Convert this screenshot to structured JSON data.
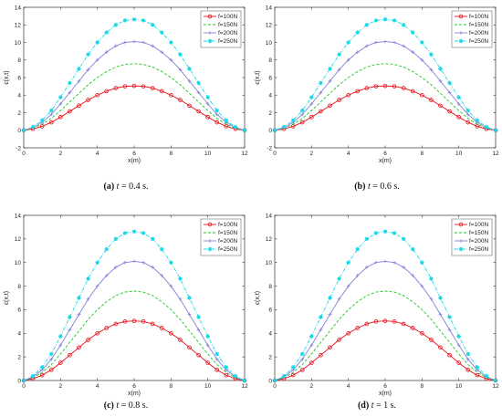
{
  "chart_data": [
    {
      "type": "line",
      "caption": {
        "label": "(a)",
        "math": "t",
        "rest": "= 0.4 s."
      },
      "xlabel": "x(m)",
      "ylabel": "ϵ(x,t)",
      "xlim": [
        0,
        12
      ],
      "ylim": [
        -2,
        14
      ],
      "xticks": [
        "0",
        "2",
        "4",
        "6",
        "8",
        "10",
        "12"
      ],
      "yticks": [
        "-2",
        "0",
        "2",
        "4",
        "6",
        "8",
        "10",
        "12",
        "14"
      ],
      "legend_position": "top-right",
      "x": [
        0,
        0.5,
        1,
        1.5,
        2,
        2.5,
        3,
        3.5,
        4,
        4.5,
        5,
        5.5,
        6,
        6.5,
        7,
        7.5,
        8,
        8.5,
        9,
        9.5,
        10,
        10.5,
        11,
        11.5,
        12
      ],
      "series": [
        {
          "name": "f=100N",
          "color": "#e8111b",
          "style": "solid-circle",
          "values": [
            0,
            0.15,
            0.45,
            0.9,
            1.5,
            2.15,
            2.8,
            3.45,
            4.0,
            4.45,
            4.8,
            5.0,
            5.05,
            5.0,
            4.8,
            4.45,
            4.0,
            3.45,
            2.8,
            2.15,
            1.5,
            0.9,
            0.45,
            0.15,
            0
          ]
        },
        {
          "name": "f=150N",
          "color": "#1ec81e",
          "style": "dashed",
          "values": [
            0,
            0.23,
            0.68,
            1.35,
            2.25,
            3.23,
            4.2,
            5.18,
            6.0,
            6.68,
            7.2,
            7.5,
            7.58,
            7.5,
            7.2,
            6.68,
            6.0,
            5.18,
            4.2,
            3.23,
            2.25,
            1.35,
            0.68,
            0.23,
            0
          ]
        },
        {
          "name": "f=200N",
          "color": "#8580d8",
          "style": "solid-plus",
          "values": [
            0,
            0.3,
            0.9,
            1.8,
            3.0,
            4.3,
            5.6,
            6.9,
            8.0,
            8.9,
            9.6,
            10.0,
            10.1,
            10.0,
            9.6,
            8.9,
            8.0,
            6.9,
            5.6,
            4.3,
            3.0,
            1.8,
            0.9,
            0.3,
            0
          ]
        },
        {
          "name": "f=250N",
          "color": "#19d8e8",
          "style": "dashdot-star",
          "values": [
            0,
            0.38,
            1.13,
            2.25,
            3.75,
            5.38,
            7.0,
            8.63,
            10.0,
            11.13,
            12.0,
            12.5,
            12.63,
            12.5,
            12.0,
            11.13,
            10.0,
            8.63,
            7.0,
            5.38,
            3.75,
            2.25,
            1.13,
            0.38,
            0
          ]
        }
      ]
    },
    {
      "type": "line",
      "caption": {
        "label": "(b)",
        "math": "t",
        "rest": "= 0.6 s."
      },
      "xlabel": "x(m)",
      "ylabel": "ϵ(x,t)",
      "xlim": [
        0,
        12
      ],
      "ylim": [
        -2,
        14
      ],
      "xticks": [
        "0",
        "2",
        "4",
        "6",
        "8",
        "10",
        "12"
      ],
      "yticks": [
        "-2",
        "0",
        "2",
        "4",
        "6",
        "8",
        "10",
        "12",
        "14"
      ],
      "legend_position": "top-right",
      "x": [
        0,
        0.5,
        1,
        1.5,
        2,
        2.5,
        3,
        3.5,
        4,
        4.5,
        5,
        5.5,
        6,
        6.5,
        7,
        7.5,
        8,
        8.5,
        9,
        9.5,
        10,
        10.5,
        11,
        11.5,
        12
      ],
      "series": [
        {
          "name": "f=100N",
          "color": "#e8111b",
          "style": "solid-circle",
          "values": [
            0,
            0.15,
            0.45,
            0.9,
            1.5,
            2.15,
            2.8,
            3.45,
            4.0,
            4.45,
            4.8,
            5.0,
            5.05,
            5.0,
            4.8,
            4.45,
            4.0,
            3.45,
            2.8,
            2.15,
            1.5,
            0.9,
            0.45,
            0.15,
            0
          ]
        },
        {
          "name": "f=150N",
          "color": "#1ec81e",
          "style": "dashed",
          "values": [
            0,
            0.23,
            0.68,
            1.35,
            2.25,
            3.23,
            4.2,
            5.18,
            6.0,
            6.68,
            7.2,
            7.5,
            7.58,
            7.5,
            7.2,
            6.68,
            6.0,
            5.18,
            4.2,
            3.23,
            2.25,
            1.35,
            0.68,
            0.23,
            0
          ]
        },
        {
          "name": "f=200N",
          "color": "#8580d8",
          "style": "solid-plus",
          "values": [
            0,
            0.3,
            0.9,
            1.8,
            3.0,
            4.3,
            5.6,
            6.9,
            8.0,
            8.9,
            9.6,
            10.0,
            10.1,
            10.0,
            9.6,
            8.9,
            8.0,
            6.9,
            5.6,
            4.3,
            3.0,
            1.8,
            0.9,
            0.3,
            0
          ]
        },
        {
          "name": "f=250N",
          "color": "#19d8e8",
          "style": "dashdot-star",
          "values": [
            0,
            0.38,
            1.13,
            2.25,
            3.75,
            5.38,
            7.0,
            8.63,
            10.0,
            11.13,
            12.0,
            12.5,
            12.63,
            12.5,
            12.0,
            11.13,
            10.0,
            8.63,
            7.0,
            5.38,
            3.75,
            2.25,
            1.13,
            0.38,
            0
          ]
        }
      ]
    },
    {
      "type": "line",
      "caption": {
        "label": "(c)",
        "math": "t",
        "rest": "= 0.8 s."
      },
      "xlabel": "x(m)",
      "ylabel": "ϵ(x,t)",
      "xlim": [
        0,
        12
      ],
      "ylim": [
        0,
        14
      ],
      "xticks": [
        "0",
        "2",
        "4",
        "6",
        "8",
        "10",
        "12"
      ],
      "yticks": [
        "0",
        "2",
        "4",
        "6",
        "8",
        "10",
        "12",
        "14"
      ],
      "legend_position": "top-right",
      "x": [
        0,
        0.5,
        1,
        1.5,
        2,
        2.5,
        3,
        3.5,
        4,
        4.5,
        5,
        5.5,
        6,
        6.5,
        7,
        7.5,
        8,
        8.5,
        9,
        9.5,
        10,
        10.5,
        11,
        11.5,
        12
      ],
      "series": [
        {
          "name": "f=100N",
          "color": "#e8111b",
          "style": "solid-circle",
          "values": [
            0,
            0.15,
            0.45,
            0.9,
            1.5,
            2.15,
            2.8,
            3.45,
            4.0,
            4.45,
            4.8,
            5.0,
            5.05,
            5.0,
            4.8,
            4.45,
            4.0,
            3.45,
            2.8,
            2.15,
            1.5,
            0.9,
            0.45,
            0.15,
            0
          ]
        },
        {
          "name": "f=150N",
          "color": "#1ec81e",
          "style": "dashed",
          "values": [
            0,
            0.23,
            0.68,
            1.35,
            2.25,
            3.23,
            4.2,
            5.18,
            6.0,
            6.68,
            7.2,
            7.5,
            7.58,
            7.5,
            7.2,
            6.68,
            6.0,
            5.18,
            4.2,
            3.23,
            2.25,
            1.35,
            0.68,
            0.23,
            0
          ]
        },
        {
          "name": "f=200N",
          "color": "#8580d8",
          "style": "solid-plus",
          "values": [
            0,
            0.3,
            0.9,
            1.8,
            3.0,
            4.3,
            5.6,
            6.9,
            8.0,
            8.9,
            9.6,
            10.0,
            10.1,
            10.0,
            9.6,
            8.9,
            8.0,
            6.9,
            5.6,
            4.3,
            3.0,
            1.8,
            0.9,
            0.3,
            0
          ]
        },
        {
          "name": "f=250N",
          "color": "#19d8e8",
          "style": "dashdot-star",
          "values": [
            0,
            0.38,
            1.13,
            2.25,
            3.75,
            5.38,
            7.0,
            8.63,
            10.0,
            11.13,
            12.0,
            12.5,
            12.63,
            12.5,
            12.0,
            11.13,
            10.0,
            8.63,
            7.0,
            5.38,
            3.75,
            2.25,
            1.13,
            0.38,
            0
          ]
        }
      ]
    },
    {
      "type": "line",
      "caption": {
        "label": "(d)",
        "math": "t",
        "rest": "= 1 s."
      },
      "xlabel": "x(m)",
      "ylabel": "ϵ(x,t)",
      "xlim": [
        0,
        12
      ],
      "ylim": [
        0,
        14
      ],
      "xticks": [
        "0",
        "2",
        "4",
        "6",
        "8",
        "10",
        "12"
      ],
      "yticks": [
        "0",
        "2",
        "4",
        "6",
        "8",
        "10",
        "12",
        "14"
      ],
      "legend_position": "top-right",
      "x": [
        0,
        0.5,
        1,
        1.5,
        2,
        2.5,
        3,
        3.5,
        4,
        4.5,
        5,
        5.5,
        6,
        6.5,
        7,
        7.5,
        8,
        8.5,
        9,
        9.5,
        10,
        10.5,
        11,
        11.5,
        12
      ],
      "series": [
        {
          "name": "f=100N",
          "color": "#e8111b",
          "style": "solid-circle",
          "values": [
            0,
            0.15,
            0.45,
            0.9,
            1.5,
            2.15,
            2.8,
            3.45,
            4.0,
            4.45,
            4.8,
            5.0,
            5.05,
            5.0,
            4.8,
            4.45,
            4.0,
            3.45,
            2.8,
            2.15,
            1.5,
            0.9,
            0.45,
            0.15,
            0
          ]
        },
        {
          "name": "f=150N",
          "color": "#1ec81e",
          "style": "dashed",
          "values": [
            0,
            0.23,
            0.68,
            1.35,
            2.25,
            3.23,
            4.2,
            5.18,
            6.0,
            6.68,
            7.2,
            7.5,
            7.58,
            7.5,
            7.2,
            6.68,
            6.0,
            5.18,
            4.2,
            3.23,
            2.25,
            1.35,
            0.68,
            0.23,
            0
          ]
        },
        {
          "name": "f=200N",
          "color": "#8580d8",
          "style": "solid-plus",
          "values": [
            0,
            0.3,
            0.9,
            1.8,
            3.0,
            4.3,
            5.6,
            6.9,
            8.0,
            8.9,
            9.6,
            10.0,
            10.1,
            10.0,
            9.6,
            8.9,
            8.0,
            6.9,
            5.6,
            4.3,
            3.0,
            1.8,
            0.9,
            0.3,
            0
          ]
        },
        {
          "name": "f=250N",
          "color": "#19d8e8",
          "style": "dashdot-star",
          "values": [
            0,
            0.38,
            1.13,
            2.25,
            3.75,
            5.38,
            7.0,
            8.63,
            10.0,
            11.13,
            12.0,
            12.5,
            12.63,
            12.5,
            12.0,
            11.13,
            10.0,
            8.63,
            7.0,
            5.38,
            3.75,
            2.25,
            1.13,
            0.38,
            0
          ]
        }
      ]
    }
  ]
}
